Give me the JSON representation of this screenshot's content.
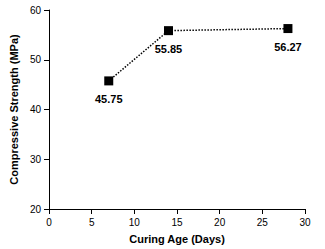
{
  "chart_data": {
    "type": "line",
    "x_label": "Curing Age (Days)",
    "y_label": "Compressive Strength (MPa)",
    "x": [
      7,
      14,
      28
    ],
    "values": [
      45.75,
      55.85,
      56.27
    ],
    "color": "#000000",
    "marker": "square",
    "line_style": "dotted",
    "data_labels": true,
    "xlim": [
      0,
      30
    ],
    "xticks": [
      0,
      5,
      10,
      15,
      20,
      25,
      30
    ],
    "ylim": [
      20,
      60
    ],
    "yticks": [
      20,
      30,
      40,
      50,
      60
    ],
    "grid": false
  }
}
